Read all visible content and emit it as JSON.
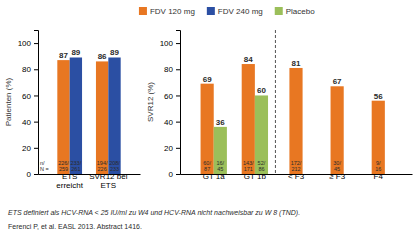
{
  "chart_data": [
    {
      "type": "bar",
      "ylabel": "Patienten (%)",
      "categories": [
        "ETS\nerreicht",
        "SVR12 bei\nETS"
      ],
      "series": [
        {
          "name": "FDV 120 mg",
          "color": "#E87722",
          "values": [
            87,
            86
          ],
          "n_labels": [
            "226/\n259",
            "194/\n226"
          ]
        },
        {
          "name": "FDV 240 mg",
          "color": "#2B4FA3",
          "values": [
            89,
            89
          ],
          "n_labels": [
            "233/\n261",
            "208/\n233"
          ]
        }
      ],
      "ylim": [
        0,
        110
      ],
      "yticks": [
        0,
        20,
        40,
        60,
        80,
        100
      ],
      "data_labels": true,
      "legend": "top",
      "annotations": [
        "n/\nN ="
      ]
    },
    {
      "type": "bar",
      "ylabel": "SVR12 (%)",
      "categories": [
        "GT 1a",
        "GT 1b",
        "< F3",
        "≥ F3",
        "F4"
      ],
      "series": [
        {
          "name": "FDV 120 mg",
          "color": "#E87722",
          "values": [
            69,
            84,
            81,
            67,
            56
          ],
          "n_labels": [
            "60/\n87",
            "143/\n171",
            "172/\n212",
            "30/\n45",
            "9/\n16"
          ]
        },
        {
          "name": "Placebo",
          "color": "#9BBF5A",
          "values": [
            36,
            60,
            null,
            null,
            null
          ],
          "n_labels": [
            "16/\n45",
            "52/\n86",
            null,
            null,
            null
          ]
        }
      ],
      "ylim": [
        0,
        110
      ],
      "yticks": [
        0,
        20,
        40,
        60,
        80,
        100
      ],
      "data_labels": true,
      "legend": "top",
      "divider_after": 1
    }
  ],
  "footnotes": [
    "ETS definiert als HCV-RNA < 25 IU/ml zu W4 und HCV-RNA nicht nachweisbar zu W 8 (TND).",
    "Ferenci P, et al. EASL 2013. Abstract 1416."
  ]
}
